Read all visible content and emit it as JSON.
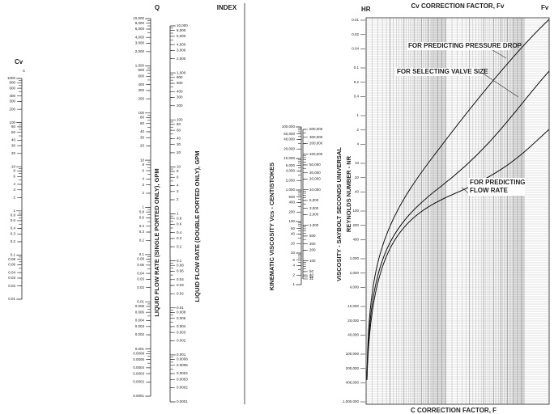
{
  "labels": {
    "cv_header": "Cv",
    "cv_sub": "C",
    "q_header": "Q",
    "index": "INDEX",
    "single_title": "LIQUID FLOW RATE (SINGLE PORTED ONLY), GPM",
    "double_title": "LIQUID FLOW RATE (DOUBLE PORTED ONLY), GPM",
    "kinematic_title": "KINEMATIC VISCOSITY Vcs - CENTISTOKES",
    "ssu_title": "VISCOSITY - SAYBOLT SECONDS UNIVERSAL",
    "reynolds_title": "REYNOLDS NUMBER - NR",
    "hr": "HR",
    "fv": "Fv",
    "top_title": "Cv CORRECTION FACTOR, Fv",
    "bottom_title": "C  CORRECTION FACTOR, F",
    "curve_pressure": "FOR PREDICTING PRESSURE DROP",
    "curve_size": "FOR SELECTING VALVE SIZE",
    "curve_flow_1": "FOR PREDICTING",
    "curve_flow_2": "FLOW RATE"
  },
  "scales": {
    "cv": [
      "1000",
      "800",
      "600",
      "400",
      "300",
      "200",
      "100",
      "80",
      "60",
      "40",
      "30",
      "20",
      "10",
      "8",
      "6",
      "4",
      "3",
      "2",
      "1",
      "0.8",
      "0.6",
      "0.4",
      "0.3",
      "0.2",
      "0.1",
      "0.08",
      "0.06",
      "0.04",
      "0.03",
      "0.02",
      "0.01"
    ],
    "single": [
      "10,000",
      "8,000",
      "6,000",
      "4,000",
      "3,000",
      "2,000",
      "1,000",
      "800",
      "600",
      "400",
      "300",
      "200",
      "100",
      "80",
      "60",
      "40",
      "30",
      "20",
      "10",
      "8",
      "6",
      "4",
      "3",
      "2",
      "1",
      "0.8",
      "0.6",
      "0.4",
      "0.3",
      "0.2",
      "0.1",
      "0.08",
      "0.06",
      "0.04",
      "0.03",
      "0.02",
      "0.01",
      "0.008",
      "0.006",
      "0.004",
      "0.003",
      "0.002",
      "0.001",
      "0.0008",
      "0.0006",
      "0.0004",
      "0.0003",
      "0.0002",
      "0.0001"
    ],
    "double": [
      "10,000",
      "8,000",
      "6,000",
      "4,000",
      "3,000",
      "2,000",
      "1,000",
      "800",
      "600",
      "400",
      "300",
      "200",
      "100",
      "80",
      "60",
      "40",
      "30",
      "20",
      "10",
      "8",
      "6",
      "4",
      "3",
      "2",
      "1",
      "0.8",
      "0.6",
      "0.4",
      "0.3",
      "0.2",
      "0.1",
      "0.08",
      "0.06",
      "0.04",
      "0.03",
      "0.02",
      "0.01",
      "0.008",
      "0.006",
      "0.004",
      "0.003",
      "0.002",
      "0.001",
      "0.0008",
      "0.0006",
      "0.0004",
      "0.0003",
      "0.0002",
      "0.0001"
    ],
    "kinematic": [
      "100,000",
      "60,000",
      "40,000",
      "20,000",
      "10,000",
      "6,000",
      "4,000",
      "2,000",
      "1,000",
      "600",
      "400",
      "200",
      "100",
      "60",
      "40",
      "20",
      "10",
      "6",
      "4",
      "2",
      "1"
    ],
    "ssu": [
      "500,000",
      "300,000",
      "200,000",
      "100,000",
      "50,000",
      "30,000",
      "20,000",
      "10,000",
      "5,000",
      "3,000",
      "2,000",
      "1,000",
      "500",
      "300",
      "200",
      "100",
      "50",
      "40",
      "35",
      "31"
    ],
    "reynolds": [
      "0.01",
      "0.02",
      "0.04",
      "0.1",
      "0.2",
      "0.4",
      "1",
      "2",
      "4",
      "10",
      "20",
      "40",
      "100",
      "200",
      "400",
      "1,000",
      "2,000",
      "4,000",
      "10,000",
      "20,000",
      "40,000",
      "100,000",
      "200,000",
      "400,000",
      "1,000,000"
    ]
  }
}
